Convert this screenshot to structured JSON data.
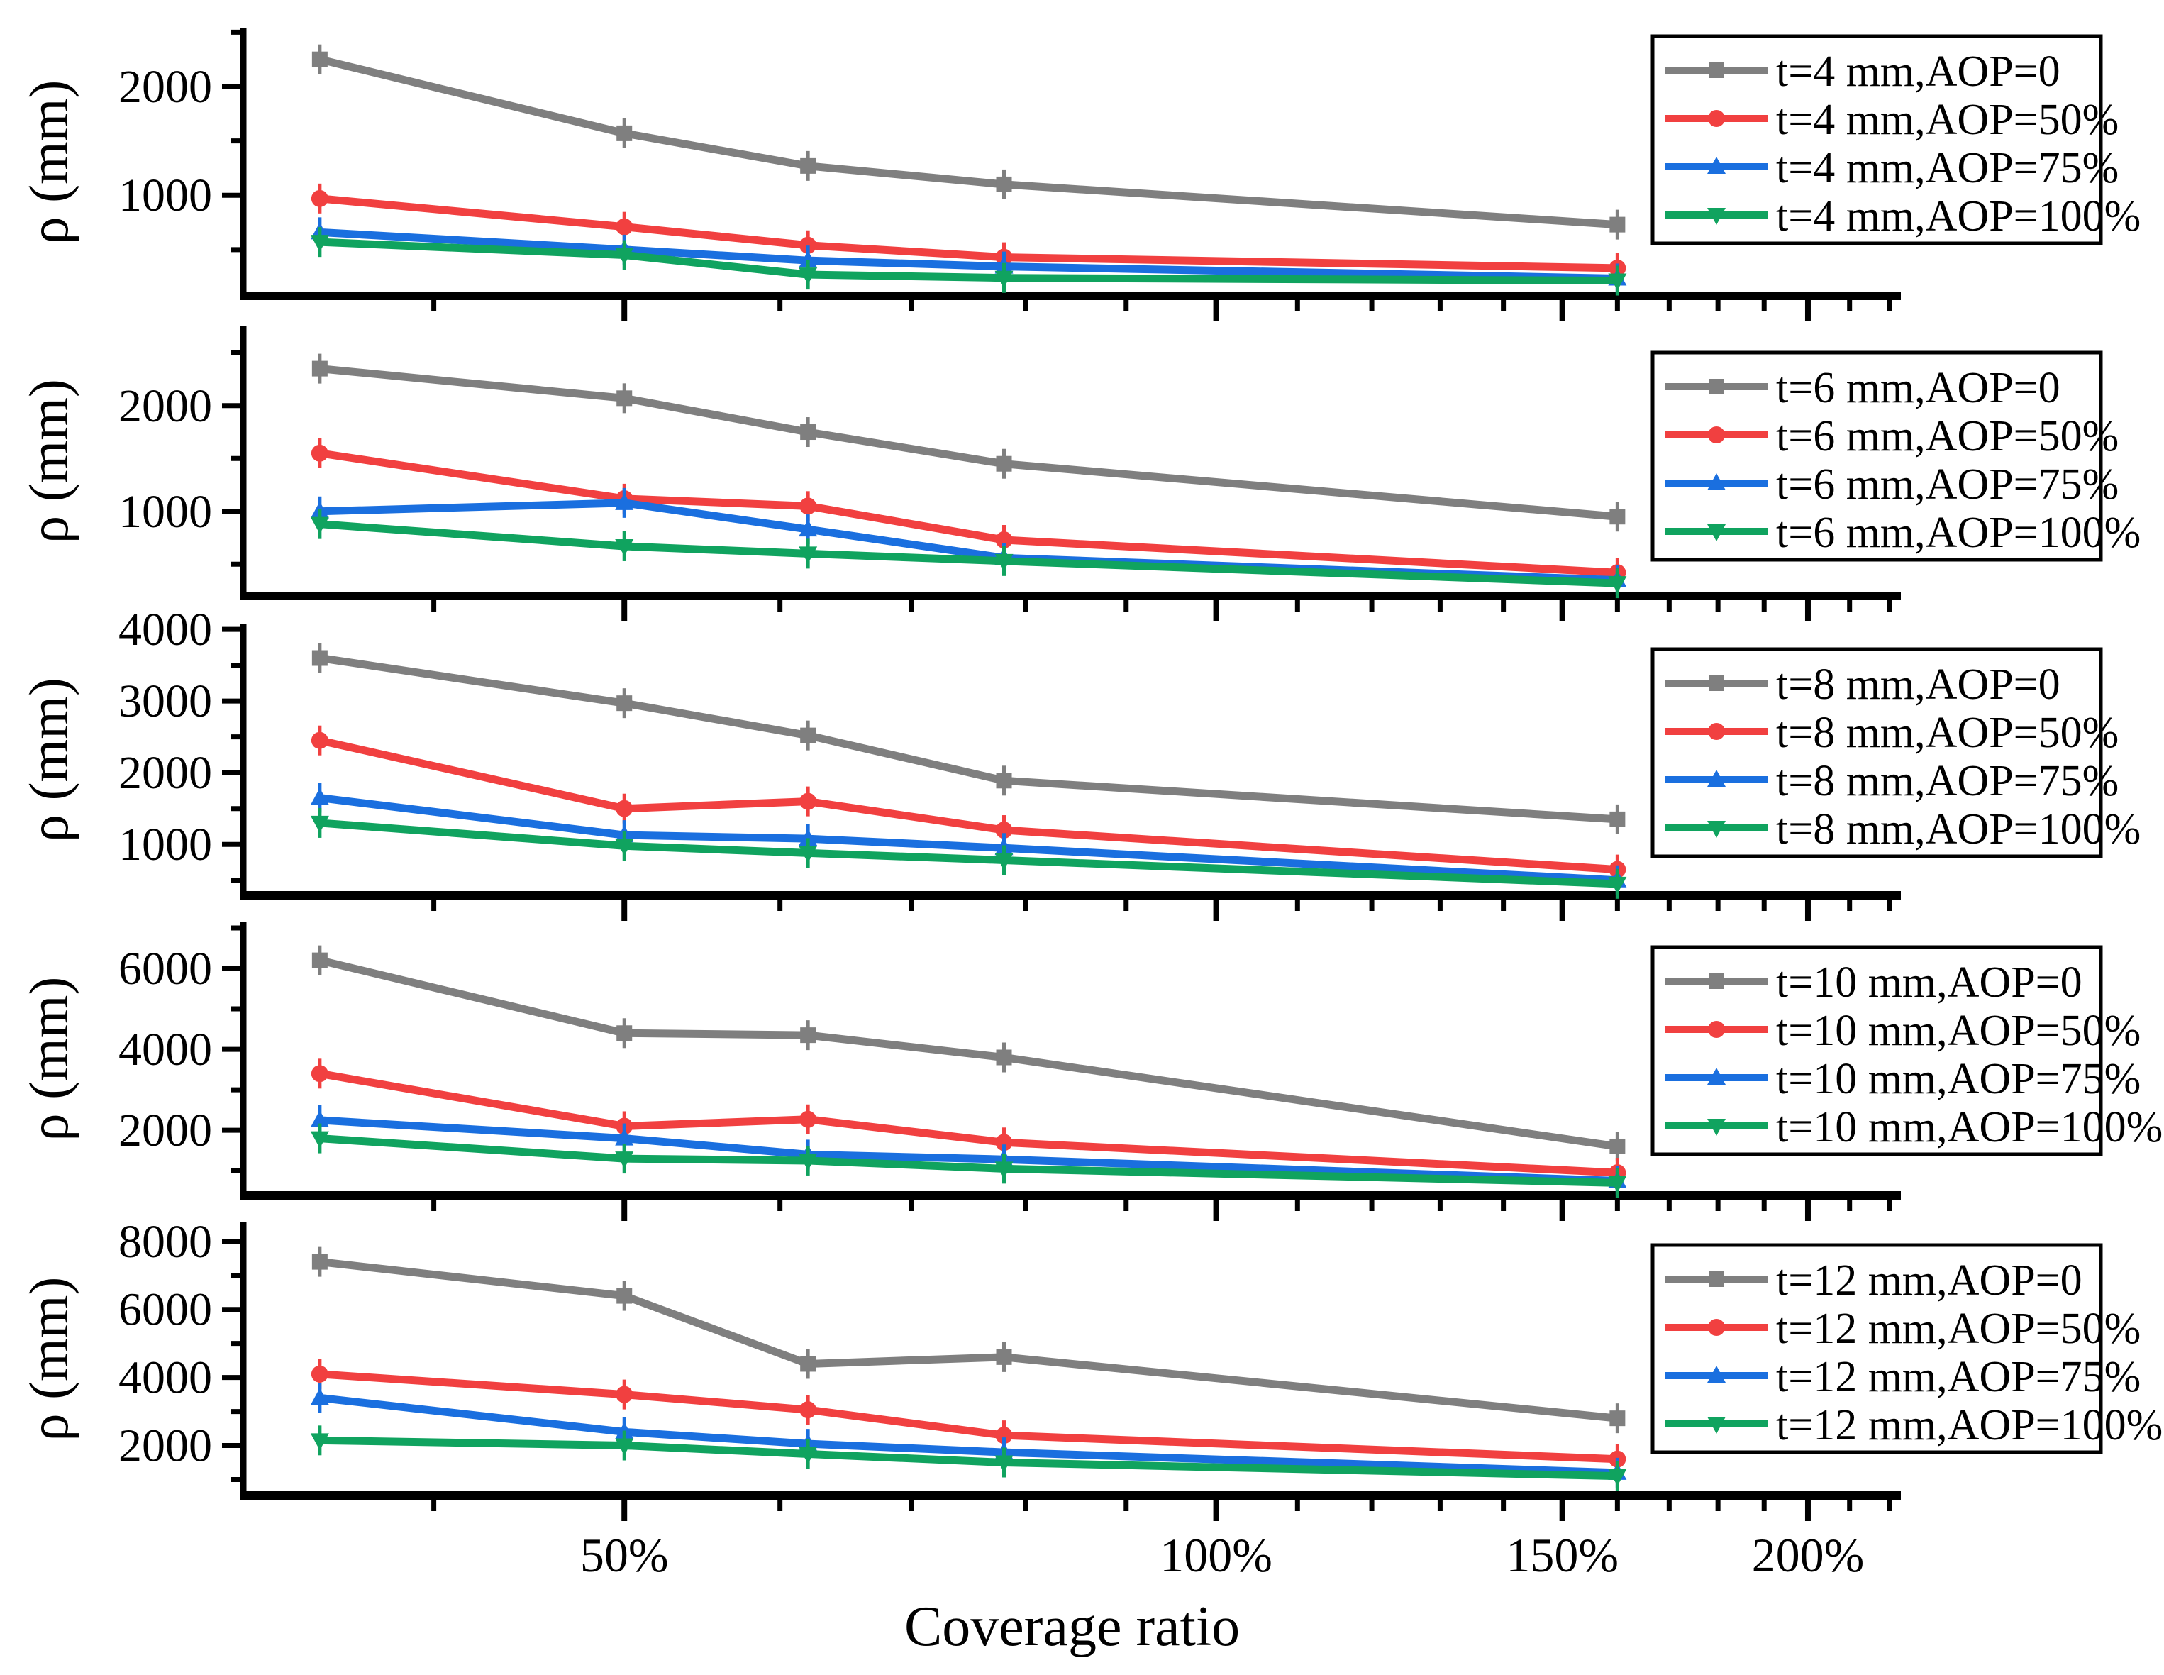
{
  "figure": {
    "type": "stacked-line-figure",
    "panel_count": 5
  },
  "chart_data": {
    "type": "line",
    "grid": "off",
    "legend_position": "top-right-inside-box",
    "x_axis": {
      "label": "Coverage ratio",
      "scale": "log",
      "xlim": [
        32,
        223
      ],
      "ticks_major": [
        50,
        100,
        150,
        200
      ],
      "tick_labels": [
        "50%",
        "100%",
        "150%",
        "200%"
      ],
      "ticks_minor": [
        40,
        60,
        70,
        80,
        90,
        110,
        120,
        130,
        140,
        160,
        170,
        180,
        190,
        210,
        220
      ],
      "data_x_percent": [
        35,
        50,
        62,
        78,
        160
      ]
    },
    "y_axis_label": "ρ (mm)",
    "colors": {
      "aop0": "#7F7F7F",
      "aop50": "#F14040",
      "aop75": "#1A6FDF",
      "aop100": "#10A35F"
    },
    "subplots": [
      {
        "t_mm": 4,
        "ylim": [
          75,
          2535
        ],
        "yticks_major": [
          1000,
          2000
        ],
        "ytick_labels": [
          "1000",
          "2000"
        ],
        "yticks_minor": [
          500,
          1500,
          2500
        ],
        "series": [
          {
            "name": "t=4 mm,AOP=0",
            "color": "#7F7F7F",
            "marker": "square",
            "values": [
              2250,
              1570,
              1270,
              1100,
              730
            ]
          },
          {
            "name": "t=4 mm,AOP=50%",
            "color": "#F14040",
            "marker": "circle",
            "values": [
              970,
              710,
              540,
              430,
              330
            ]
          },
          {
            "name": "t=4 mm,AOP=75%",
            "color": "#1A6FDF",
            "marker": "triangle-up",
            "values": [
              660,
              500,
              400,
              345,
              235
            ]
          },
          {
            "name": "t=4 mm,AOP=100%",
            "color": "#10A35F",
            "marker": "triangle-down",
            "values": [
              570,
              450,
              270,
              240,
              215
            ]
          }
        ]
      },
      {
        "t_mm": 6,
        "ylim": [
          200,
          2750
        ],
        "yticks_major": [
          1000,
          2000
        ],
        "ytick_labels": [
          "1000",
          "2000"
        ],
        "yticks_minor": [
          500,
          1500,
          2500
        ],
        "series": [
          {
            "name": "t=6 mm,AOP=0",
            "color": "#7F7F7F",
            "marker": "square",
            "values": [
              2350,
              2070,
              1750,
              1450,
              950
            ]
          },
          {
            "name": "t=6 mm,AOP=50%",
            "color": "#F14040",
            "marker": "circle",
            "values": [
              1550,
              1120,
              1050,
              730,
              420
            ]
          },
          {
            "name": "t=6 mm,AOP=75%",
            "color": "#1A6FDF",
            "marker": "triangle-up",
            "values": [
              1000,
              1080,
              830,
              560,
              350
            ]
          },
          {
            "name": "t=6 mm,AOP=100%",
            "color": "#10A35F",
            "marker": "triangle-down",
            "values": [
              880,
              670,
              600,
              530,
              320
            ]
          }
        ]
      },
      {
        "t_mm": 8,
        "ylim": [
          290,
          4070
        ],
        "yticks_major": [
          1000,
          2000,
          3000,
          4000
        ],
        "ytick_labels": [
          "1000",
          "2000",
          "3000",
          "4000"
        ],
        "yticks_minor": [
          500,
          1500,
          2500,
          3500
        ],
        "series": [
          {
            "name": "t=8 mm,AOP=0",
            "color": "#7F7F7F",
            "marker": "square",
            "values": [
              3600,
              2970,
              2520,
              1890,
              1350
            ]
          },
          {
            "name": "t=8 mm,AOP=50%",
            "color": "#F14040",
            "marker": "circle",
            "values": [
              2450,
              1500,
              1600,
              1200,
              650
            ]
          },
          {
            "name": "t=8 mm,AOP=75%",
            "color": "#1A6FDF",
            "marker": "triangle-up",
            "values": [
              1650,
              1130,
              1080,
              950,
              500
            ]
          },
          {
            "name": "t=8 mm,AOP=100%",
            "color": "#10A35F",
            "marker": "triangle-down",
            "values": [
              1300,
              980,
              880,
              780,
              450
            ]
          }
        ]
      },
      {
        "t_mm": 10,
        "ylim": [
          390,
          7140
        ],
        "yticks_major": [
          2000,
          4000,
          6000
        ],
        "ytick_labels": [
          "2000",
          "4000",
          "6000"
        ],
        "yticks_minor": [
          1000,
          3000,
          5000,
          7000
        ],
        "series": [
          {
            "name": "t=10 mm,AOP=0",
            "color": "#7F7F7F",
            "marker": "square",
            "values": [
              6200,
              4400,
              4350,
              3800,
              1600
            ]
          },
          {
            "name": "t=10 mm,AOP=50%",
            "color": "#F14040",
            "marker": "circle",
            "values": [
              3400,
              2100,
              2270,
              1700,
              950
            ]
          },
          {
            "name": "t=10 mm,AOP=75%",
            "color": "#1A6FDF",
            "marker": "triangle-up",
            "values": [
              2250,
              1800,
              1400,
              1280,
              750
            ]
          },
          {
            "name": "t=10 mm,AOP=100%",
            "color": "#10A35F",
            "marker": "triangle-down",
            "values": [
              1800,
              1300,
              1250,
              1050,
              700
            ]
          }
        ]
      },
      {
        "t_mm": 12,
        "ylim": [
          530,
          8560
        ],
        "yticks_major": [
          2000,
          4000,
          6000,
          8000
        ],
        "ytick_labels": [
          "2000",
          "4000",
          "6000",
          "8000"
        ],
        "yticks_minor": [
          1000,
          3000,
          5000,
          7000
        ],
        "series": [
          {
            "name": "t=12 mm,AOP=0",
            "color": "#7F7F7F",
            "marker": "square",
            "values": [
              7400,
              6400,
              4400,
              4600,
              2800
            ]
          },
          {
            "name": "t=12 mm,AOP=50%",
            "color": "#F14040",
            "marker": "circle",
            "values": [
              4100,
              3500,
              3050,
              2300,
              1600
            ]
          },
          {
            "name": "t=12 mm,AOP=75%",
            "color": "#1A6FDF",
            "marker": "triangle-up",
            "values": [
              3400,
              2400,
              2050,
              1800,
              1200
            ]
          },
          {
            "name": "t=12 mm,AOP=100%",
            "color": "#10A35F",
            "marker": "triangle-down",
            "values": [
              2150,
              2000,
              1750,
              1500,
              1100
            ]
          }
        ]
      }
    ]
  }
}
